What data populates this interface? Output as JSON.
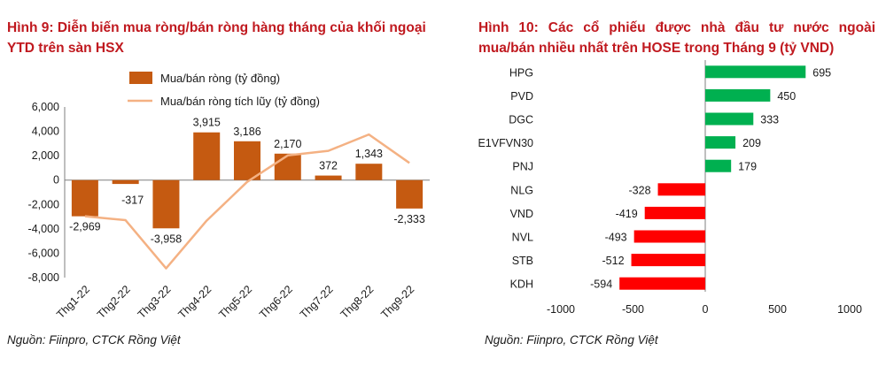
{
  "left": {
    "title": "Hình 9: Diễn biến mua ròng/bán ròng hàng tháng của khối ngoại YTD trên sàn HSX",
    "source": "Nguồn: Fiinpro, CTCK Rồng Việt",
    "colors": {
      "bar": "#c55a11",
      "line": "#f4b183"
    }
  },
  "right": {
    "title": "Hình 10: Các cổ phiếu được nhà đầu tư nước ngoài mua/bán nhiều nhất trên HOSE trong Tháng 9 (tỷ VND)",
    "source": "Nguồn: Fiinpro, CTCK Rồng Việt",
    "colors": {
      "positive": "#00b050",
      "negative": "#ff0000"
    }
  },
  "chart_data": [
    {
      "type": "bar",
      "categories": [
        "Thg1-22",
        "Thg2-22",
        "Thg3-22",
        "Thg4-22",
        "Thg5-22",
        "Thg6-22",
        "Thg7-22",
        "Thg8-22",
        "Thg9-22"
      ],
      "series": [
        {
          "name": "Mua/bán ròng (tỷ đồng)",
          "type": "bar",
          "values": [
            -2969,
            -317,
            -3958,
            3915,
            3186,
            2170,
            372,
            1343,
            -2333
          ],
          "labels": [
            "-2,969",
            "-317",
            "-3,958",
            "3,915",
            "3,186",
            "2,170",
            "372",
            "1,343",
            "-2,333"
          ]
        },
        {
          "name": "Mua/bán ròng tích lũy (tỷ đồng)",
          "type": "line",
          "values": [
            -2969,
            -3286,
            -7244,
            -3329,
            -143,
            2027,
            2399,
            3742,
            1409
          ]
        }
      ],
      "yticks": [
        "6,000",
        "4,000",
        "2,000",
        "0",
        "-2,000",
        "-4,000",
        "-6,000",
        "-8,000"
      ],
      "ylim": [
        -8000,
        6000
      ],
      "legend": "top-left",
      "grid": false
    },
    {
      "type": "bar",
      "orientation": "horizontal",
      "categories": [
        "HPG",
        "PVD",
        "DGC",
        "E1VFVN30",
        "PNJ",
        "NLG",
        "VND",
        "NVL",
        "STB",
        "KDH"
      ],
      "values": [
        695,
        450,
        333,
        209,
        179,
        -328,
        -419,
        -493,
        -512,
        -594
      ],
      "xticks": [
        "-1000",
        "-500",
        "0",
        "500",
        "1000"
      ],
      "xlim": [
        -1000,
        1000
      ],
      "grid": false
    }
  ]
}
